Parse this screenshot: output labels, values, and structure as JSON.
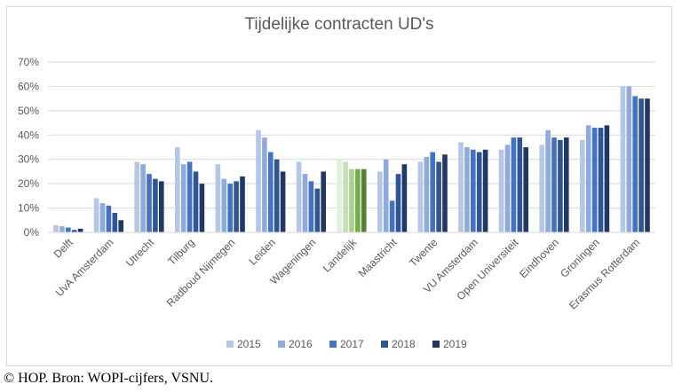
{
  "chart_data": {
    "type": "bar",
    "title": "Tijdelijke contracten UD's",
    "categories": [
      "Delft",
      "UvA Amsterdam",
      "Utrecht",
      "Tilburg",
      "Radboud Nijmegen",
      "Leiden",
      "Wageningen",
      "Landelijk",
      "Maastricht",
      "Twente",
      "VU Amsterdam",
      "Open Universiteit",
      "Eindhoven",
      "Groningen",
      "Erasmus Rotterdam"
    ],
    "series": [
      {
        "name": "2015",
        "values": [
          3,
          14,
          29,
          35,
          28,
          42,
          29,
          30,
          25,
          29,
          37,
          34,
          36,
          38,
          60
        ]
      },
      {
        "name": "2016",
        "values": [
          2.5,
          12,
          28,
          28,
          22,
          39,
          24,
          29,
          30,
          31,
          35,
          36,
          42,
          44,
          60
        ]
      },
      {
        "name": "2017",
        "values": [
          2,
          11,
          24,
          29,
          20,
          33,
          21,
          26,
          13,
          33,
          34,
          39,
          39,
          43,
          56
        ]
      },
      {
        "name": "2018",
        "values": [
          1,
          8,
          22,
          25,
          21,
          30,
          18,
          26,
          24,
          29,
          33,
          39,
          38,
          43,
          55
        ]
      },
      {
        "name": "2019",
        "values": [
          1.5,
          5,
          21,
          20,
          23,
          25,
          25,
          26,
          28,
          32,
          34,
          35,
          39,
          44,
          55
        ]
      }
    ],
    "series_colors": [
      "#b4c7e7",
      "#8faadc",
      "#4472c4",
      "#2f5597",
      "#203864"
    ],
    "highlight_category": "Landelijk",
    "highlight_colors": [
      "#e2efda",
      "#c5e0b4",
      "#a9d18e",
      "#70ad47",
      "#548235"
    ],
    "y_ticks": [
      "0%",
      "10%",
      "20%",
      "30%",
      "40%",
      "50%",
      "60%",
      "70%"
    ],
    "ylim": [
      0,
      70
    ],
    "grid": true,
    "legend_position": "bottom"
  },
  "source_note": "© HOP. Bron: WOPI-cijfers, VSNU."
}
